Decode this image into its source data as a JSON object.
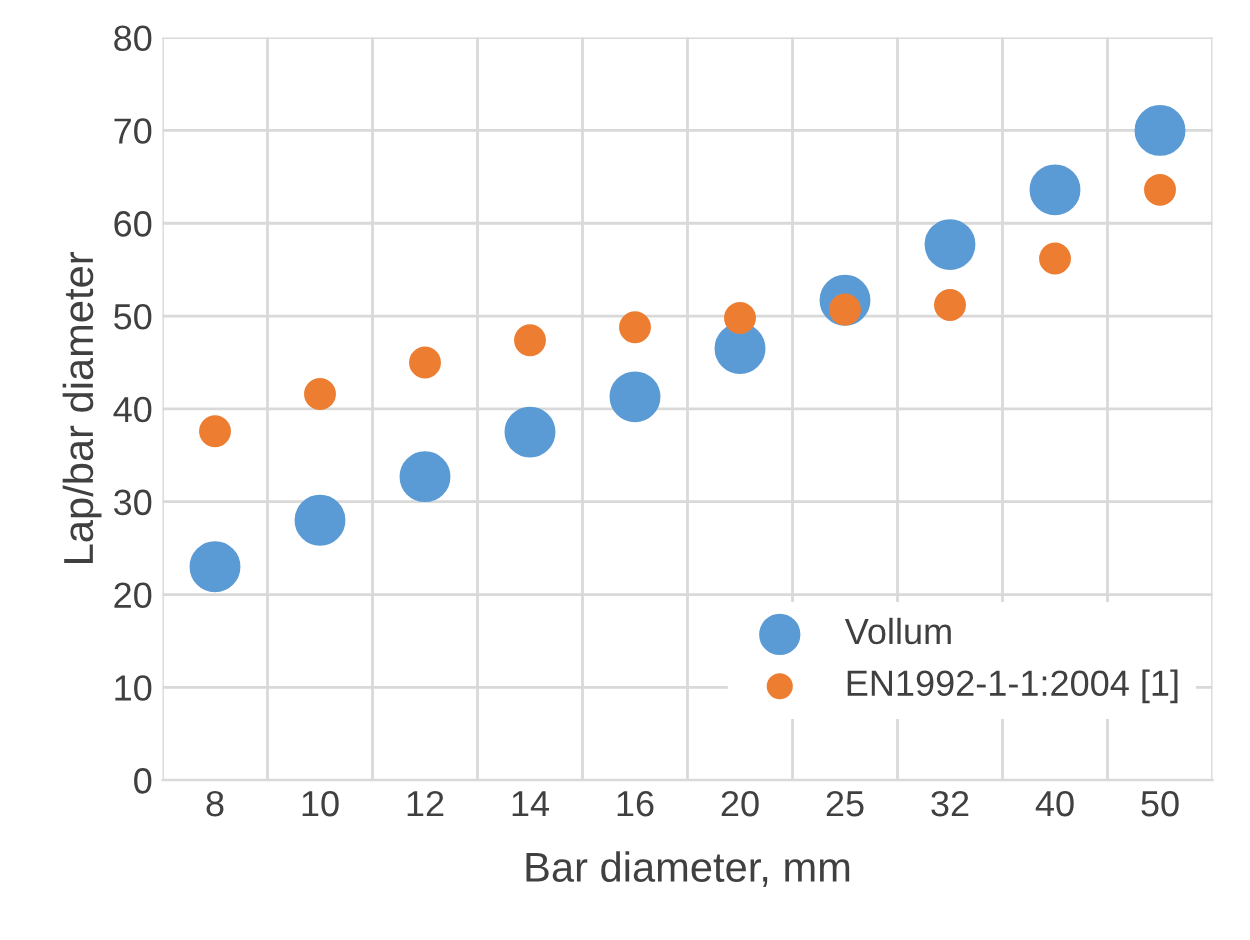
{
  "chart_data": {
    "type": "scatter",
    "xlabel": "Bar diameter, mm",
    "ylabel": "Lap/bar diameter",
    "categories": [
      "8",
      "10",
      "12",
      "14",
      "16",
      "20",
      "25",
      "32",
      "40",
      "50"
    ],
    "series": [
      {
        "name": "Vollum",
        "color": "#5b9bd5",
        "values": [
          23,
          28,
          32.7,
          37.5,
          41.3,
          46.5,
          51.7,
          57.7,
          63.6,
          70
        ]
      },
      {
        "name": "EN1992-1-1:2004 [1]",
        "color": "#ed7d31",
        "values": [
          37.6,
          41.6,
          45,
          47.4,
          48.8,
          49.8,
          50.7,
          51.2,
          56.2,
          63.6
        ]
      }
    ],
    "ylim": [
      0,
      80
    ],
    "yticks": [
      0,
      10,
      20,
      30,
      40,
      50,
      60,
      70,
      80
    ],
    "grid": true,
    "legend": "bottom right",
    "marker": "circle"
  }
}
